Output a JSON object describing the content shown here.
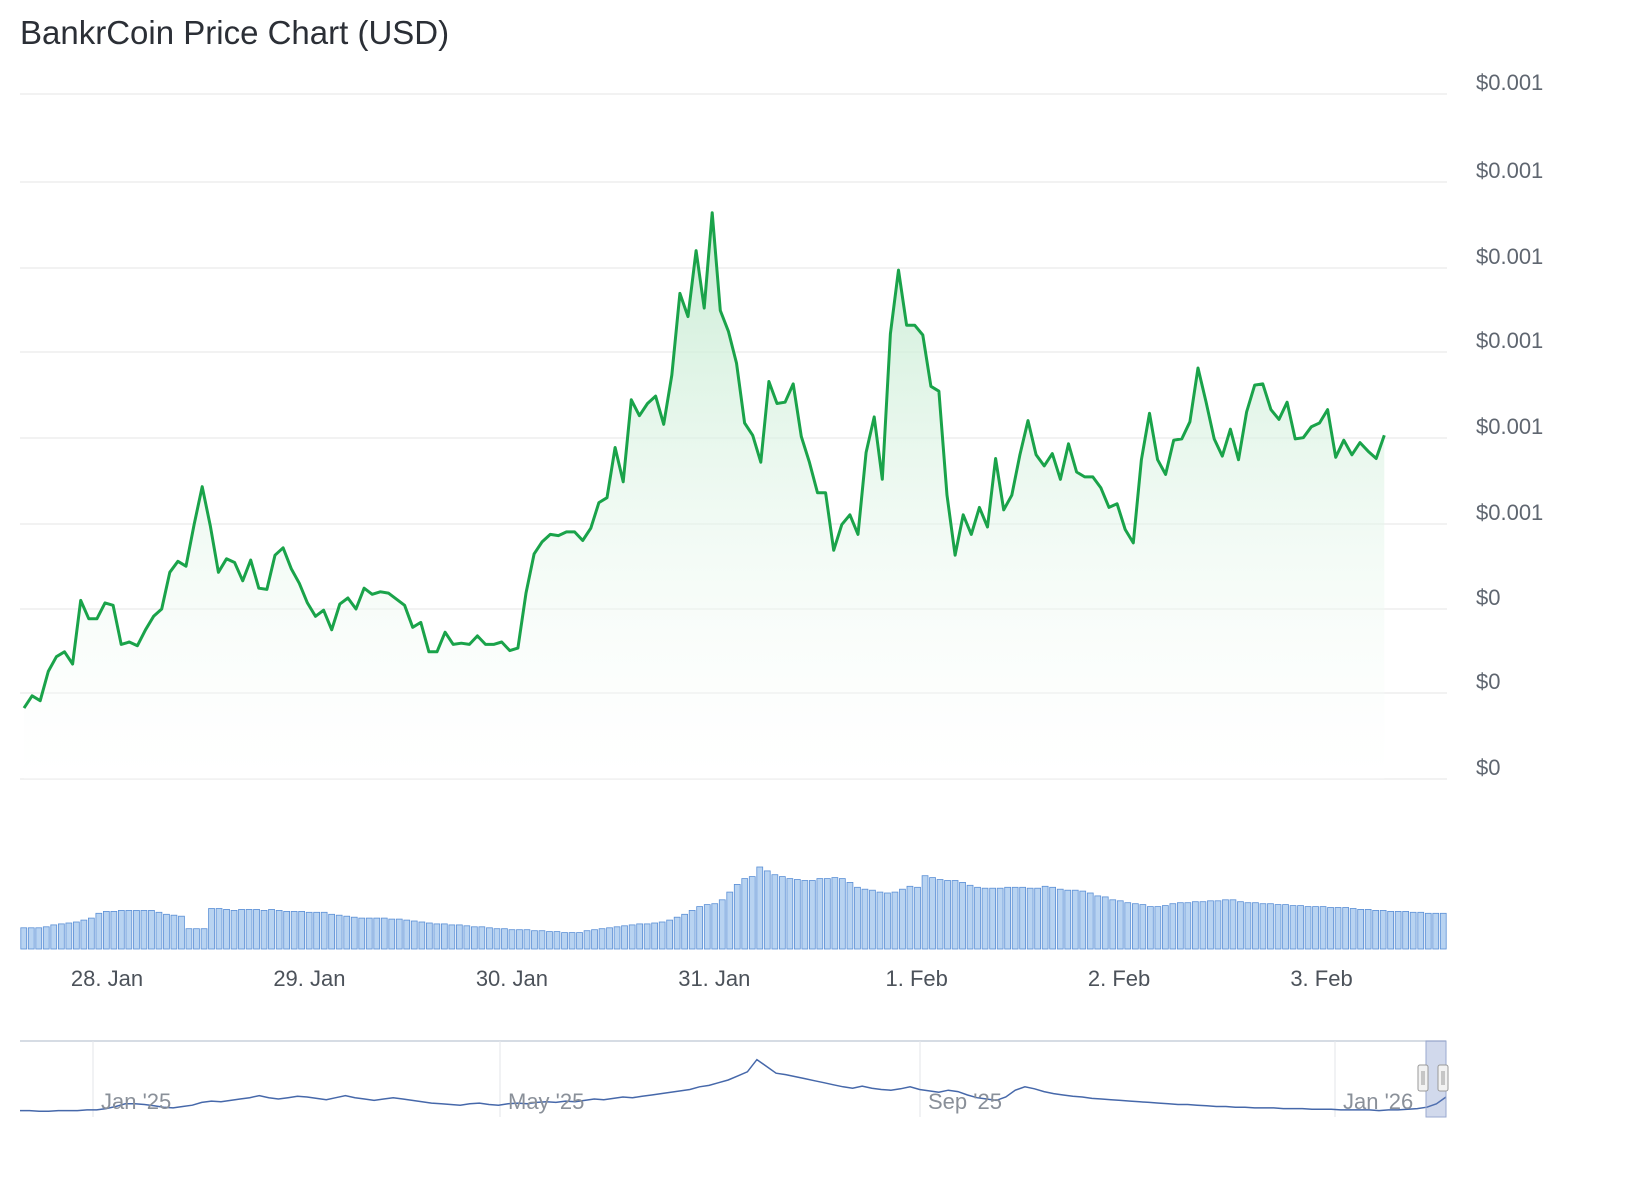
{
  "colors": {
    "price_line": "#1aa34a",
    "area_top": "#bfe9cc",
    "volume_bar_fill": "#b8d3f1",
    "volume_bar_stroke": "#5a8fd6",
    "navigator_line": "#4668aa",
    "gridline": "#e6e6e6"
  },
  "chart_data": {
    "type": "line",
    "title": "BankrCoin Price Chart (USD)",
    "y_tick_labels": [
      "$0.001",
      "$0.001",
      "$0.001",
      "$0.001",
      "$0.001",
      "$0.001",
      "$0",
      "$0",
      "$0"
    ],
    "ylim": [
      0.00042,
      0.00098
    ],
    "grid": true,
    "x_tick_labels": [
      "28. Jan",
      "29. Jan",
      "30. Jan",
      "31. Jan",
      "1. Feb",
      "2. Feb",
      "3. Feb"
    ],
    "x_range_days": [
      -0.43,
      6.62
    ],
    "series": [
      {
        "kind": "price",
        "points": [
          [
            -0.41,
            0.000478
          ],
          [
            -0.37,
            0.000488
          ],
          [
            -0.33,
            0.000484
          ],
          [
            -0.29,
            0.000508
          ],
          [
            -0.25,
            0.00052
          ],
          [
            -0.21,
            0.000524
          ],
          [
            -0.17,
            0.000514
          ],
          [
            -0.13,
            0.000566
          ],
          [
            -0.09,
            0.000551
          ],
          [
            -0.05,
            0.000551
          ],
          [
            -0.01,
            0.000564
          ],
          [
            0.03,
            0.000562
          ],
          [
            0.07,
            0.00053
          ],
          [
            0.11,
            0.000532
          ],
          [
            0.15,
            0.000529
          ],
          [
            0.19,
            0.000542
          ],
          [
            0.23,
            0.000553
          ],
          [
            0.27,
            0.000559
          ],
          [
            0.31,
            0.000589
          ],
          [
            0.35,
            0.000598
          ],
          [
            0.39,
            0.000594
          ],
          [
            0.43,
            0.000628
          ],
          [
            0.47,
            0.000659
          ],
          [
            0.51,
            0.000627
          ],
          [
            0.55,
            0.000589
          ],
          [
            0.59,
            0.0006
          ],
          [
            0.63,
            0.000597
          ],
          [
            0.67,
            0.000582
          ],
          [
            0.71,
            0.000599
          ],
          [
            0.75,
            0.000576
          ],
          [
            0.79,
            0.000575
          ],
          [
            0.83,
            0.000603
          ],
          [
            0.87,
            0.000609
          ],
          [
            0.91,
            0.000592
          ],
          [
            0.95,
            0.00058
          ],
          [
            0.99,
            0.000564
          ],
          [
            1.03,
            0.000553
          ],
          [
            1.07,
            0.000558
          ],
          [
            1.11,
            0.000542
          ],
          [
            1.15,
            0.000563
          ],
          [
            1.19,
            0.000568
          ],
          [
            1.23,
            0.000559
          ],
          [
            1.27,
            0.000576
          ],
          [
            1.31,
            0.000571
          ],
          [
            1.35,
            0.000573
          ],
          [
            1.39,
            0.000572
          ],
          [
            1.43,
            0.000567
          ],
          [
            1.47,
            0.000562
          ],
          [
            1.51,
            0.000544
          ],
          [
            1.55,
            0.000548
          ],
          [
            1.59,
            0.000524
          ],
          [
            1.63,
            0.000524
          ],
          [
            1.67,
            0.00054
          ],
          [
            1.71,
            0.00053
          ],
          [
            1.75,
            0.000531
          ],
          [
            1.79,
            0.00053
          ],
          [
            1.83,
            0.000537
          ],
          [
            1.87,
            0.00053
          ],
          [
            1.91,
            0.00053
          ],
          [
            1.95,
            0.000532
          ],
          [
            1.99,
            0.000525
          ],
          [
            2.03,
            0.000527
          ],
          [
            2.07,
            0.000572
          ],
          [
            2.11,
            0.000604
          ],
          [
            2.15,
            0.000614
          ],
          [
            2.19,
            0.00062
          ],
          [
            2.23,
            0.000619
          ],
          [
            2.27,
            0.000622
          ],
          [
            2.31,
            0.000622
          ],
          [
            2.35,
            0.000615
          ],
          [
            2.39,
            0.000625
          ],
          [
            2.43,
            0.000646
          ],
          [
            2.47,
            0.00065
          ],
          [
            2.51,
            0.000691
          ],
          [
            2.55,
            0.000663
          ],
          [
            2.59,
            0.00073
          ],
          [
            2.63,
            0.000717
          ],
          [
            2.67,
            0.000727
          ],
          [
            2.71,
            0.000733
          ],
          [
            2.75,
            0.00071
          ],
          [
            2.79,
            0.00075
          ],
          [
            2.83,
            0.000817
          ],
          [
            2.87,
            0.000798
          ],
          [
            2.91,
            0.000852
          ],
          [
            2.95,
            0.000805
          ],
          [
            2.99,
            0.000883
          ],
          [
            3.03,
            0.000803
          ],
          [
            3.07,
            0.000786
          ],
          [
            3.11,
            0.00076
          ],
          [
            3.15,
            0.000711
          ],
          [
            3.19,
            0.000701
          ],
          [
            3.23,
            0.000679
          ],
          [
            3.27,
            0.000745
          ],
          [
            3.31,
            0.000727
          ],
          [
            3.35,
            0.000728
          ],
          [
            3.39,
            0.000743
          ],
          [
            3.43,
            0.0007
          ],
          [
            3.47,
            0.000679
          ],
          [
            3.51,
            0.000654
          ],
          [
            3.55,
            0.000654
          ],
          [
            3.59,
            0.000607
          ],
          [
            3.63,
            0.000628
          ],
          [
            3.67,
            0.000636
          ],
          [
            3.71,
            0.00062
          ],
          [
            3.75,
            0.000687
          ],
          [
            3.79,
            0.000716
          ],
          [
            3.83,
            0.000665
          ],
          [
            3.87,
            0.000784
          ],
          [
            3.91,
            0.000836
          ],
          [
            3.95,
            0.000791
          ],
          [
            3.99,
            0.000791
          ],
          [
            4.03,
            0.000783
          ],
          [
            4.07,
            0.000741
          ],
          [
            4.11,
            0.000737
          ],
          [
            4.15,
            0.000652
          ],
          [
            4.19,
            0.000603
          ],
          [
            4.23,
            0.000636
          ],
          [
            4.27,
            0.00062
          ],
          [
            4.31,
            0.000642
          ],
          [
            4.35,
            0.000626
          ],
          [
            4.39,
            0.000682
          ],
          [
            4.43,
            0.00064
          ],
          [
            4.47,
            0.000652
          ],
          [
            4.51,
            0.000685
          ],
          [
            4.55,
            0.000713
          ],
          [
            4.59,
            0.000685
          ],
          [
            4.63,
            0.000676
          ],
          [
            4.67,
            0.000686
          ],
          [
            4.71,
            0.000665
          ],
          [
            4.75,
            0.000694
          ],
          [
            4.79,
            0.000671
          ],
          [
            4.83,
            0.000667
          ],
          [
            4.87,
            0.000667
          ],
          [
            4.91,
            0.000658
          ],
          [
            4.95,
            0.000642
          ],
          [
            4.99,
            0.000645
          ],
          [
            5.03,
            0.000624
          ],
          [
            5.07,
            0.000613
          ],
          [
            5.11,
            0.000681
          ],
          [
            5.15,
            0.000719
          ],
          [
            5.19,
            0.000681
          ],
          [
            5.23,
            0.000669
          ],
          [
            5.27,
            0.000697
          ],
          [
            5.31,
            0.000698
          ],
          [
            5.35,
            0.000712
          ],
          [
            5.39,
            0.000756
          ],
          [
            5.43,
            0.000728
          ],
          [
            5.47,
            0.000698
          ],
          [
            5.51,
            0.000684
          ],
          [
            5.55,
            0.000706
          ],
          [
            5.59,
            0.000681
          ],
          [
            5.63,
            0.00072
          ],
          [
            5.67,
            0.000742
          ],
          [
            5.71,
            0.000743
          ],
          [
            5.75,
            0.000722
          ],
          [
            5.79,
            0.000714
          ],
          [
            5.83,
            0.000728
          ],
          [
            5.87,
            0.000698
          ],
          [
            5.91,
            0.000699
          ],
          [
            5.95,
            0.000708
          ],
          [
            5.99,
            0.000711
          ],
          [
            6.03,
            0.000722
          ],
          [
            6.07,
            0.000683
          ],
          [
            6.11,
            0.000697
          ],
          [
            6.15,
            0.000685
          ],
          [
            6.19,
            0.000695
          ],
          [
            6.23,
            0.000688
          ],
          [
            6.27,
            0.000682
          ],
          [
            6.31,
            0.000701
          ]
        ]
      },
      {
        "kind": "volume",
        "values": [
          22,
          22,
          22,
          23,
          25,
          26,
          27,
          28,
          30,
          32,
          37,
          39,
          39,
          40,
          40,
          40,
          40,
          40,
          38,
          36,
          35,
          34,
          21,
          21,
          21,
          42,
          42,
          41,
          40,
          41,
          41,
          41,
          40,
          41,
          40,
          39,
          39,
          39,
          38,
          38,
          38,
          36,
          35,
          34,
          33,
          32,
          32,
          32,
          32,
          31,
          31,
          30,
          29,
          28,
          27,
          26,
          26,
          25,
          25,
          24,
          23,
          23,
          22,
          21,
          21,
          20,
          20,
          20,
          19,
          19,
          18,
          18,
          17,
          17,
          17,
          19,
          20,
          21,
          22,
          23,
          24,
          25,
          26,
          26,
          27,
          28,
          30,
          33,
          36,
          40,
          44,
          46,
          47,
          51,
          59,
          67,
          73,
          75,
          85,
          81,
          77,
          75,
          73,
          72,
          71,
          71,
          73,
          73,
          74,
          73,
          69,
          64,
          62,
          61,
          59,
          58,
          59,
          62,
          65,
          64,
          76,
          74,
          72,
          71,
          71,
          69,
          66,
          64,
          63,
          63,
          63,
          64,
          64,
          64,
          63,
          63,
          65,
          64,
          62,
          61,
          61,
          60,
          58,
          55,
          54,
          51,
          50,
          48,
          47,
          46,
          44,
          44,
          45,
          47,
          48,
          48,
          49,
          49,
          50,
          50,
          51,
          51,
          49,
          48,
          48,
          47,
          47,
          46,
          46,
          45,
          45,
          44,
          44,
          44,
          43,
          43,
          43,
          42,
          41,
          41,
          40,
          40,
          39,
          39,
          39,
          38,
          38,
          37,
          37,
          37
        ]
      }
    ],
    "navigator": {
      "x_tick_labels": [
        "Jan '25",
        "May '25",
        "Sep '25",
        "Jan '26"
      ],
      "values": [
        0.05,
        0.05,
        0.04,
        0.04,
        0.05,
        0.05,
        0.05,
        0.06,
        0.06,
        0.08,
        0.11,
        0.15,
        0.15,
        0.14,
        0.12,
        0.1,
        0.09,
        0.11,
        0.13,
        0.17,
        0.19,
        0.18,
        0.2,
        0.22,
        0.24,
        0.27,
        0.24,
        0.22,
        0.24,
        0.26,
        0.25,
        0.23,
        0.21,
        0.24,
        0.27,
        0.24,
        0.22,
        0.2,
        0.22,
        0.24,
        0.22,
        0.2,
        0.18,
        0.16,
        0.15,
        0.14,
        0.13,
        0.15,
        0.16,
        0.14,
        0.13,
        0.15,
        0.16,
        0.15,
        0.17,
        0.18,
        0.17,
        0.19,
        0.18,
        0.2,
        0.22,
        0.21,
        0.23,
        0.25,
        0.24,
        0.26,
        0.28,
        0.3,
        0.32,
        0.34,
        0.36,
        0.4,
        0.42,
        0.46,
        0.5,
        0.56,
        0.62,
        0.8,
        0.7,
        0.6,
        0.58,
        0.55,
        0.52,
        0.49,
        0.46,
        0.43,
        0.4,
        0.38,
        0.41,
        0.38,
        0.36,
        0.35,
        0.37,
        0.4,
        0.36,
        0.34,
        0.32,
        0.35,
        0.33,
        0.28,
        0.24,
        0.22,
        0.2,
        0.25,
        0.35,
        0.4,
        0.37,
        0.33,
        0.3,
        0.28,
        0.26,
        0.25,
        0.23,
        0.22,
        0.21,
        0.2,
        0.19,
        0.18,
        0.17,
        0.16,
        0.15,
        0.14,
        0.14,
        0.13,
        0.12,
        0.11,
        0.11,
        0.1,
        0.1,
        0.09,
        0.09,
        0.09,
        0.08,
        0.08,
        0.08,
        0.07,
        0.07,
        0.07,
        0.06,
        0.06,
        0.06,
        0.06,
        0.05,
        0.06,
        0.06,
        0.07,
        0.08,
        0.1,
        0.15,
        0.25
      ]
    }
  }
}
